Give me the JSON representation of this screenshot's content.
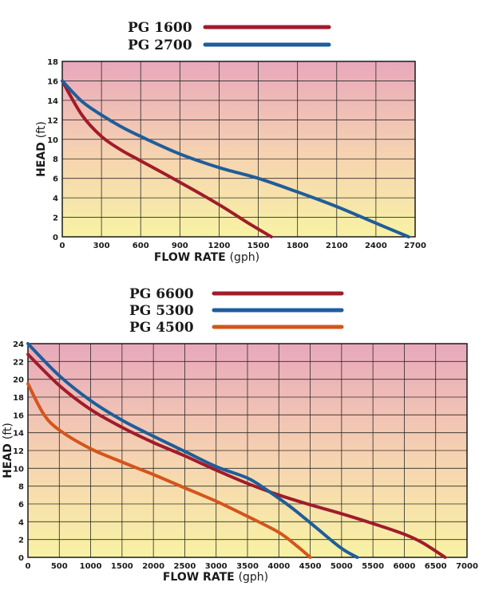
{
  "chart_data": [
    {
      "type": "line",
      "xlabel": "FLOW RATE",
      "xlabel_unit": "(gph)",
      "ylabel": "HEAD",
      "ylabel_unit": "(ft)",
      "xlim": [
        0,
        2700
      ],
      "ylim": [
        0,
        18
      ],
      "x_ticks": [
        0,
        300,
        600,
        900,
        1200,
        1500,
        1800,
        2100,
        2400,
        2700
      ],
      "y_ticks": [
        0,
        2,
        4,
        6,
        8,
        10,
        12,
        14,
        16,
        18
      ],
      "grid": true,
      "legend_position": "top-center",
      "background_gradient": [
        "#e8a8bc",
        "#f8f2a4"
      ],
      "series": [
        {
          "name": "PG 1600",
          "color": "#a01c2a",
          "points": [
            [
              0,
              16
            ],
            [
              150,
              12.5
            ],
            [
              300,
              10.3
            ],
            [
              450,
              8.9
            ],
            [
              600,
              7.8
            ],
            [
              900,
              5.6
            ],
            [
              1200,
              3.3
            ],
            [
              1400,
              1.6
            ],
            [
              1600,
              0
            ]
          ]
        },
        {
          "name": "PG 2700",
          "color": "#1f5d9b",
          "points": [
            [
              0,
              16
            ],
            [
              150,
              13.9
            ],
            [
              300,
              12.5
            ],
            [
              450,
              11.3
            ],
            [
              600,
              10.3
            ],
            [
              900,
              8.5
            ],
            [
              1200,
              7.1
            ],
            [
              1500,
              6
            ],
            [
              1800,
              4.6
            ],
            [
              2100,
              3.1
            ],
            [
              2400,
              1.4
            ],
            [
              2650,
              0
            ]
          ]
        }
      ]
    },
    {
      "type": "line",
      "xlabel": "FLOW RATE",
      "xlabel_unit": "(gph)",
      "ylabel": "HEAD",
      "ylabel_unit": "(ft)",
      "xlim": [
        0,
        7000
      ],
      "ylim": [
        0,
        24
      ],
      "x_ticks": [
        0,
        500,
        1000,
        1500,
        2000,
        2500,
        3000,
        3500,
        4000,
        4500,
        5000,
        5500,
        6000,
        6500,
        7000
      ],
      "y_ticks": [
        0,
        2,
        4,
        6,
        8,
        10,
        12,
        14,
        16,
        18,
        20,
        22,
        24
      ],
      "grid": true,
      "legend_position": "top-center",
      "background_gradient": [
        "#e8a8bc",
        "#f8f2a4"
      ],
      "series": [
        {
          "name": "PG 6600",
          "color": "#a01c2a",
          "points": [
            [
              0,
              22.8
            ],
            [
              500,
              19.3
            ],
            [
              1000,
              16.6
            ],
            [
              1500,
              14.6
            ],
            [
              2000,
              12.9
            ],
            [
              2500,
              11.4
            ],
            [
              3000,
              9.8
            ],
            [
              3500,
              8.3
            ],
            [
              4000,
              7
            ],
            [
              4500,
              5.9
            ],
            [
              5000,
              4.9
            ],
            [
              5500,
              3.8
            ],
            [
              6000,
              2.6
            ],
            [
              6300,
              1.6
            ],
            [
              6650,
              0
            ]
          ]
        },
        {
          "name": "PG 5300",
          "color": "#1f5d9b",
          "points": [
            [
              0,
              24
            ],
            [
              500,
              20.4
            ],
            [
              1000,
              17.6
            ],
            [
              1500,
              15.4
            ],
            [
              2000,
              13.6
            ],
            [
              2500,
              11.9
            ],
            [
              3000,
              10.2
            ],
            [
              3500,
              8.9
            ],
            [
              3800,
              7.6
            ],
            [
              4200,
              5.6
            ],
            [
              4600,
              3.3
            ],
            [
              5000,
              1
            ],
            [
              5250,
              0
            ]
          ]
        },
        {
          "name": "PG 4500",
          "color": "#d4551c",
          "points": [
            [
              0,
              19.5
            ],
            [
              250,
              16.1
            ],
            [
              500,
              14.3
            ],
            [
              1000,
              12.2
            ],
            [
              1500,
              10.7
            ],
            [
              2000,
              9.3
            ],
            [
              2500,
              7.8
            ],
            [
              3000,
              6.3
            ],
            [
              3500,
              4.6
            ],
            [
              4000,
              2.8
            ],
            [
              4300,
              1.2
            ],
            [
              4500,
              0
            ]
          ]
        }
      ]
    }
  ]
}
